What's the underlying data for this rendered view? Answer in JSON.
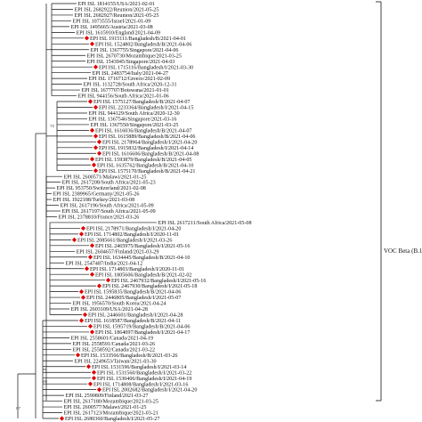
{
  "clade_label": "VOC Beta (B.1.351)",
  "colors": {
    "marker": "#e00000",
    "branch": "#111111"
  },
  "marker_icon": "diamond-icon",
  "bootstrap_values": [
    "72",
    "99",
    "87"
  ],
  "leaves": [
    {
      "label": "EPI ISL 1814155/USA/2021-02-01",
      "marker": false
    },
    {
      "label": "EPI ISL 2682922/Reunion/2021-05-25",
      "marker": false
    },
    {
      "label": "EPI ISL 2682927/Reunion/2021-05-25",
      "marker": false
    },
    {
      "label": "EPI ISL 1073555/Israel/2021-01-09",
      "marker": false
    },
    {
      "label": "EPI ISL 1495665/Austria/2021-03-08",
      "marker": false
    },
    {
      "label": "EPI ISL 1615910/England/2021-04-09",
      "marker": false
    },
    {
      "label": "EPI ISL 1915111/Bangladesh/B/2021-04-01",
      "marker": true
    },
    {
      "label": "EPI ISL 1524802/Bangladesh/B/2021-04-06",
      "marker": true
    },
    {
      "label": "EPI ISL 1367755/Singapore/2021-04-06",
      "marker": false
    },
    {
      "label": "EPI ISL 2670730/Mozambique/2021-03-25",
      "marker": false
    },
    {
      "label": "EPI ISL 1543945/Singapore/2021-04-03",
      "marker": false
    },
    {
      "label": "EPI ISL 1715116/Bangladesh/I/2021-03-30",
      "marker": true
    },
    {
      "label": "EPI ISL 2483754/Italy/2021-04-27",
      "marker": false
    },
    {
      "label": "EPI ISL 1716712/Greece/2021-02-09",
      "marker": false
    },
    {
      "label": "EPI ISL 1132728/South Africa/2020-12-31",
      "marker": false
    },
    {
      "label": "EPI ISL 1677707/Botswana/2021-01-01",
      "marker": false
    },
    {
      "label": "EPI ISL 944156/South Africa/2021-01-06",
      "marker": false
    },
    {
      "label": "EPI ISL 1575127/Bangladesh/B/2021-04-07",
      "marker": true
    },
    {
      "label": "EPI ISL 2233364/Bangladesh/I/2021-04-15",
      "marker": true
    },
    {
      "label": "EPI ISL 944129/South Africa/2020-12-30",
      "marker": false
    },
    {
      "label": "EPI ISL 1367546/Singapore/2021-03-16",
      "marker": false
    },
    {
      "label": "EPI ISL 1367550/Singapore/2021-03-25",
      "marker": false
    },
    {
      "label": "EPI ISL 1616036/Bangladesh/B/2021-04-07",
      "marker": true
    },
    {
      "label": "EPI ISL 1615889/Bangladesh/B/2021-04-06",
      "marker": true
    },
    {
      "label": "EPI ISL 2178964/Bangladesh/I/2021-04-20",
      "marker": true
    },
    {
      "label": "EPI ISL 1915832/Bangladesh/I/2021-04-14",
      "marker": true
    },
    {
      "label": "EPI ISL 1616606/Bangladesh/B/2021-04-08",
      "marker": true
    },
    {
      "label": "EPI ISL 1593879/Bangladesh/B/2021-04-05",
      "marker": true
    },
    {
      "label": "EPI ISL 1635762/Bangladesh/B/2021-04-10",
      "marker": true
    },
    {
      "label": "EPI ISL 1575170/Bangladesh/B/2021-04-21",
      "marker": true
    },
    {
      "label": "EPI ISL 2600571/Malawi/2021-01-25",
      "marker": false
    },
    {
      "label": "EPI ISL 2617208/South Africa/2021-05-23",
      "marker": false
    },
    {
      "label": "EPI ISL 953750/Switzerland/2021-02-08",
      "marker": false
    },
    {
      "label": "EPI ISL 2389965/Germany/2021-05-26",
      "marker": false
    },
    {
      "label": "EPI ISL 1922188/Turkey/2021-03-08",
      "marker": false
    },
    {
      "label": "EPI ISL 2617196/South Africa/2021-05-09",
      "marker": false
    },
    {
      "label": "EPI ISL 2617197/South Africa/2021-05-09",
      "marker": false
    },
    {
      "label": "EPI ISL 2378810/France/2021-03-26",
      "marker": false
    },
    {
      "label": "EPI ISL 2617211/South Africa/2021-05-08",
      "marker": false
    },
    {
      "label": "EPI ISL 2178971/Bangladesh/I/2021-04-20",
      "marker": true
    },
    {
      "label": "EPI ISL 1714802/Bangladesh/I/2020-11-01",
      "marker": true
    },
    {
      "label": "EPI ISL 2085661/Bangladesh/I/2021-03-26",
      "marker": true
    },
    {
      "label": "EPI ISL 2465975/Bangladesh/I/2021-05-16",
      "marker": true
    },
    {
      "label": "EPI ISL 2604657/Finland/2021-03-29",
      "marker": false
    },
    {
      "label": "EPI ISL 1634445/Bangladesh/B/2021-04-10",
      "marker": true
    },
    {
      "label": "EPI ISL 2547487/India/2021-04-12",
      "marker": false
    },
    {
      "label": "EPI ISL 1714803/Bangladesh/I/2020-11-01",
      "marker": true
    },
    {
      "label": "EPI ISL 1805606/Bangladesh/B/2021-02-02",
      "marker": true
    },
    {
      "label": "EPI ISL 2467932/Bangladesh/I/2021-05-16",
      "marker": true
    },
    {
      "label": "EPI ISL 2467930/Bangladesh/I/2021-05-18",
      "marker": true
    },
    {
      "label": "EPI ISL 1595835/Bangladesh/B/2021-04-06",
      "marker": true
    },
    {
      "label": "EPI ISL 2446805/Bangladesh/I/2021-05-07",
      "marker": true
    },
    {
      "label": "EPI ISL 1956570/South Korea/2021-04-24",
      "marker": false
    },
    {
      "label": "EPI ISL 2603109/USA/2021-04-28",
      "marker": false
    },
    {
      "label": "EPI ISL 2446601/Bangladesh/I/2021-04-28",
      "marker": true
    },
    {
      "label": "EPI ISL 1618587/Bangladesh/B/2021-04-11",
      "marker": true
    },
    {
      "label": "EPI ISL 1595719/Bangladesh/B/2021-04-06",
      "marker": true
    },
    {
      "label": "EPI ISL 1864097/Bangladesh/I/2021-04-17",
      "marker": true
    },
    {
      "label": "EPI ISL 2558601/Canada/2021-04-19",
      "marker": false
    },
    {
      "label": "EPI ISL 2558591/Canada/2021-03-26",
      "marker": false
    },
    {
      "label": "EPI ISL 2558592/Canada/2021-03-22",
      "marker": false
    },
    {
      "label": "EPI ISL 1533566/Bangladesh/B/2021-03-26",
      "marker": true
    },
    {
      "label": "EPI ISL 2249653/Taiwan/2021-03-30",
      "marker": false
    },
    {
      "label": "EPI ISL 1531596/Bangladesh/I/2021-03-14",
      "marker": true
    },
    {
      "label": "EPI ISL 1531560/Bangladesh/I/2021-03-22",
      "marker": true
    },
    {
      "label": "EPI ISL 1530406/Bangladesh/I/2021-04-19",
      "marker": true
    },
    {
      "label": "EPI ISL 1714808/Bangladesh/I/2021-03-16",
      "marker": true
    },
    {
      "label": "EPI ISL 2002682/Bangladesh/I/2021-04-20",
      "marker": true
    },
    {
      "label": "EPI ISL 2590809/Finland/2021-03-27",
      "marker": false
    },
    {
      "label": "EPI ISL 2617180/Mozambique/2021-03-25",
      "marker": false
    },
    {
      "label": "EPI ISL 2600577/Malawi/2021-01-25",
      "marker": false
    },
    {
      "label": "EPI ISL 2617123/Mozambique/2021-03-21",
      "marker": false
    },
    {
      "label": "EPI ISL 2680360/Bangladesh/I/2021-05-27",
      "marker": true
    }
  ]
}
